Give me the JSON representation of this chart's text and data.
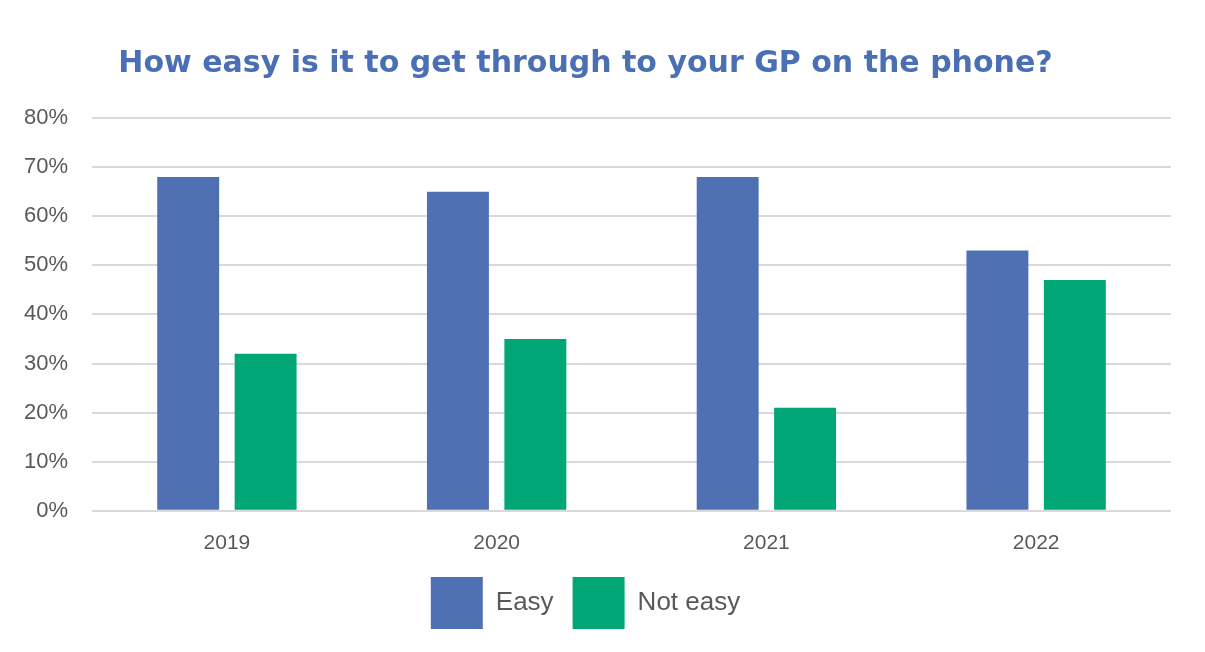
{
  "chart_data": {
    "type": "bar",
    "title": "How easy is it to get through to your GP on the phone?",
    "categories": [
      "2019",
      "2020",
      "2021",
      "2022"
    ],
    "series": [
      {
        "name": "Easy",
        "color": "#4f71b4",
        "values": [
          68,
          65,
          68,
          53
        ]
      },
      {
        "name": "Not easy",
        "color": "#00a676",
        "values": [
          32,
          35,
          21,
          47
        ]
      }
    ],
    "ylim": [
      0,
      80
    ],
    "yticks": [
      {
        "value": 0,
        "label": "0%"
      },
      {
        "value": 10,
        "label": "10%"
      },
      {
        "value": 20,
        "label": "20%"
      },
      {
        "value": 30,
        "label": "30%"
      },
      {
        "value": 40,
        "label": "40%"
      },
      {
        "value": 50,
        "label": "50%"
      },
      {
        "value": 60,
        "label": "60%"
      },
      {
        "value": 70,
        "label": "70%"
      },
      {
        "value": 80,
        "label": "80%"
      }
    ],
    "grid": "y",
    "legend": "bottom"
  }
}
